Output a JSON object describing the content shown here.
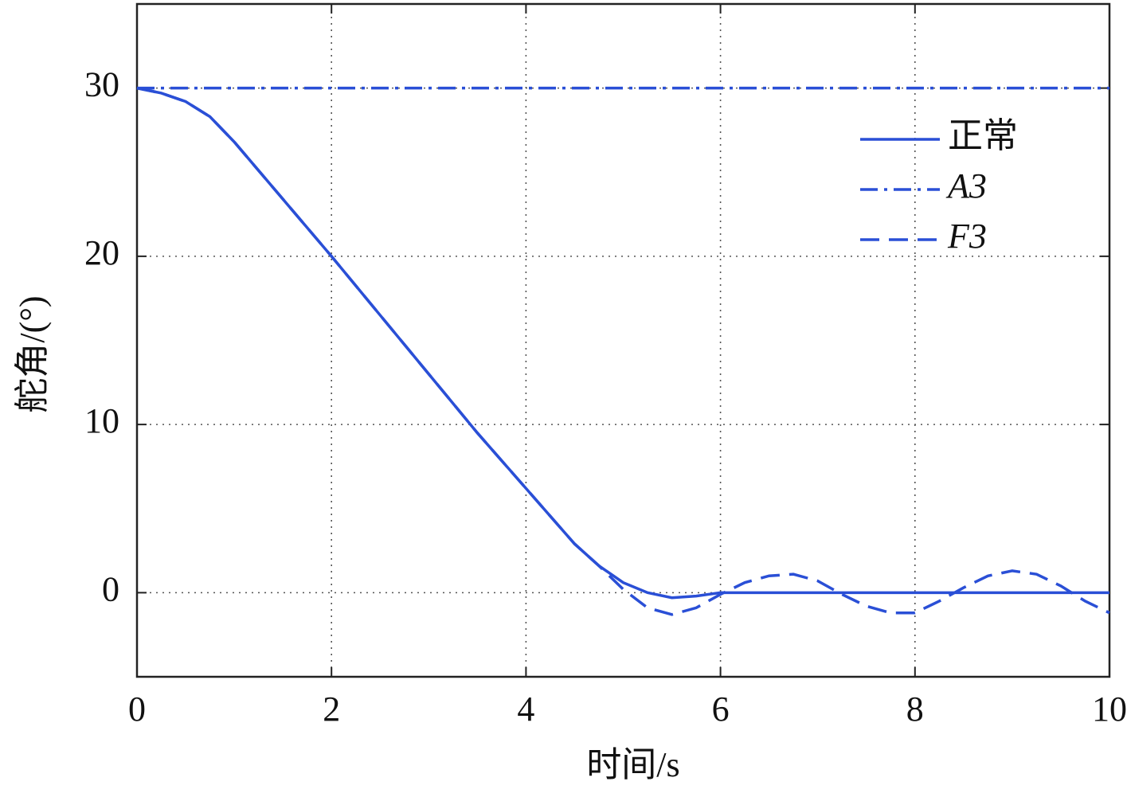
{
  "chart_data": {
    "type": "line",
    "x_label": "时间/s",
    "y_label": "舵角/(°)",
    "x": [
      0,
      0.25,
      0.5,
      0.75,
      1,
      1.5,
      2,
      2.5,
      3,
      3.5,
      4,
      4.5,
      4.75,
      5,
      5.25,
      5.5,
      5.75,
      6,
      6.25,
      6.5,
      6.75,
      7,
      7.25,
      7.5,
      7.75,
      8,
      8.25,
      8.5,
      8.75,
      9,
      9.25,
      9.5,
      9.75,
      10
    ],
    "series": [
      {
        "name": "正常",
        "color": "#2a4fd6",
        "dash": "solid",
        "values": [
          30,
          29.7,
          29.2,
          28.3,
          26.8,
          23.4,
          20.0,
          16.5,
          13.0,
          9.5,
          6.2,
          2.9,
          1.6,
          0.6,
          0.0,
          -0.3,
          -0.2,
          0,
          0,
          0,
          0,
          0,
          0,
          0,
          0,
          0,
          0,
          0,
          0,
          0,
          0,
          0,
          0,
          0
        ]
      },
      {
        "name": "A3",
        "color": "#2a4fd6",
        "dash": "dashdot",
        "values": [
          30,
          30,
          30,
          30,
          30,
          30,
          30,
          30,
          30,
          30,
          30,
          30,
          30,
          30,
          30,
          30,
          30,
          30,
          30,
          30,
          30,
          30,
          30,
          30,
          30,
          30,
          30,
          30,
          30,
          30,
          30,
          30,
          30,
          30
        ]
      },
      {
        "name": "F3",
        "color": "#2a4fd6",
        "dash": "dash",
        "values": [
          30,
          29.7,
          29.2,
          28.3,
          26.8,
          23.4,
          20.0,
          16.5,
          13.0,
          9.5,
          6.2,
          2.9,
          1.6,
          0.2,
          -0.9,
          -1.3,
          -0.9,
          -0.1,
          0.6,
          1.0,
          1.1,
          0.7,
          -0.1,
          -0.8,
          -1.2,
          -1.2,
          -0.5,
          0.3,
          1.0,
          1.3,
          1.1,
          0.4,
          -0.5,
          -1.2
        ]
      }
    ],
    "xlim": [
      0,
      10
    ],
    "ylim": [
      -5,
      35
    ],
    "xticks": [
      0,
      2,
      4,
      6,
      8,
      10
    ],
    "yticks": [
      0,
      10,
      20,
      30
    ],
    "grid": true,
    "legend": "upper right"
  }
}
